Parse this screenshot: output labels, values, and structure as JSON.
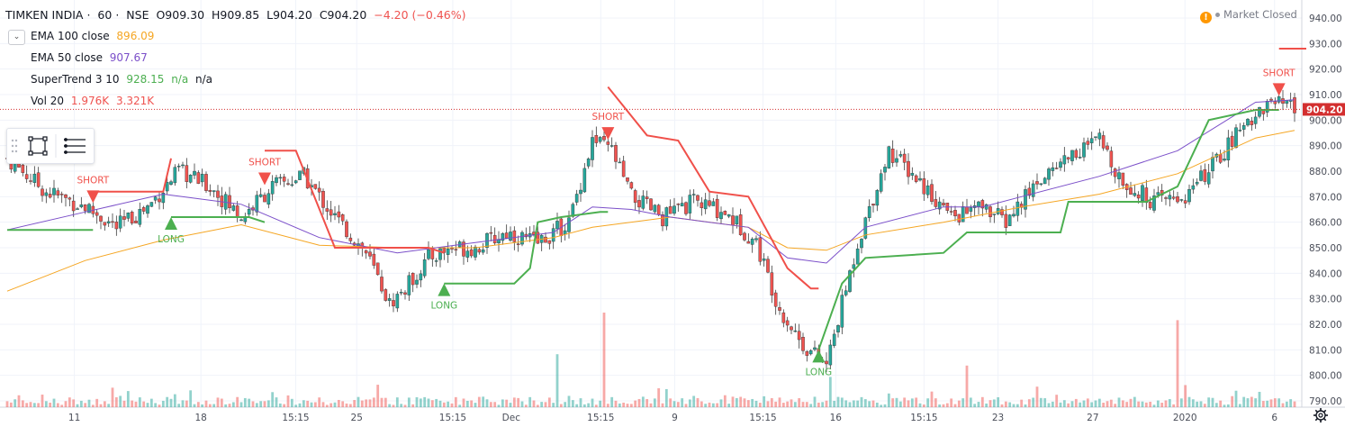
{
  "header": {
    "symbol": "TIMKEN INDIA",
    "interval": "60",
    "exchange": "NSE",
    "open": "O909.30",
    "high": "H909.85",
    "low": "L904.20",
    "close": "C904.20",
    "change": "−4.20 (−0.46%)"
  },
  "status": {
    "text": "Market Closed",
    "warning_icon": "warning-icon"
  },
  "indicators": [
    {
      "label": "EMA 100 close",
      "values": [
        "896.09"
      ],
      "color": "#f5a623"
    },
    {
      "label": "EMA 50 close",
      "values": [
        "907.67"
      ],
      "color": "#7b4fc9"
    },
    {
      "label": "SuperTrend 3 10",
      "values": [
        "928.15",
        "n/a",
        "n/a"
      ],
      "color": "#4caf50"
    },
    {
      "label": "Vol 20",
      "values": [
        "1.976K",
        "3.321K"
      ],
      "color": "#ef5350"
    }
  ],
  "toolbar": {
    "icons": [
      "drag-handle-icon",
      "rectangle-icon",
      "menu-icon"
    ]
  },
  "colors": {
    "up": "#26a69a",
    "down": "#ef5350",
    "ema100": "#f5a623",
    "ema50": "#7b4fc9",
    "supertrend_up": "#4caf50",
    "supertrend_down": "#f0504a",
    "price_line": "#d32f2f"
  },
  "chart_data": {
    "type": "candlestick",
    "ylim": [
      790,
      940
    ],
    "y_ticks": [
      "940.00",
      "930.00",
      "920.00",
      "910.00",
      "900.00",
      "890.00",
      "880.00",
      "870.00",
      "860.00",
      "850.00",
      "840.00",
      "830.00",
      "820.00",
      "810.00",
      "800.00",
      "790.00"
    ],
    "x_ticks": [
      "11",
      "18",
      "15:15",
      "25",
      "15:15",
      "Dec",
      "15:15",
      "9",
      "15:15",
      "16",
      "15:15",
      "23",
      "27",
      "2020",
      "6"
    ],
    "last_price": "904.20",
    "signals": [
      {
        "label": "SHORT",
        "type": "short"
      },
      {
        "label": "LONG",
        "type": "long"
      },
      {
        "label": "SHORT",
        "type": "short"
      },
      {
        "label": "LONG",
        "type": "long"
      },
      {
        "label": "SHORT",
        "type": "short"
      },
      {
        "label": "LONG",
        "type": "long"
      },
      {
        "label": "SHORT",
        "type": "short"
      }
    ],
    "close_path": [
      [
        0,
        885
      ],
      [
        10,
        872
      ],
      [
        20,
        866
      ],
      [
        28,
        858
      ],
      [
        36,
        866
      ],
      [
        44,
        880
      ],
      [
        52,
        874
      ],
      [
        60,
        862
      ],
      [
        68,
        874
      ],
      [
        76,
        878
      ],
      [
        84,
        862
      ],
      [
        92,
        848
      ],
      [
        98,
        828
      ],
      [
        102,
        834
      ],
      [
        108,
        846
      ],
      [
        114,
        850
      ],
      [
        120,
        850
      ],
      [
        128,
        856
      ],
      [
        136,
        852
      ],
      [
        144,
        860
      ],
      [
        150,
        892
      ],
      [
        155,
        888
      ],
      [
        160,
        870
      ],
      [
        168,
        862
      ],
      [
        176,
        868
      ],
      [
        184,
        864
      ],
      [
        192,
        852
      ],
      [
        198,
        826
      ],
      [
        204,
        812
      ],
      [
        210,
        804
      ],
      [
        218,
        852
      ],
      [
        226,
        888
      ],
      [
        234,
        876
      ],
      [
        242,
        862
      ],
      [
        250,
        866
      ],
      [
        256,
        860
      ],
      [
        264,
        876
      ],
      [
        272,
        886
      ],
      [
        280,
        892
      ],
      [
        286,
        876
      ],
      [
        294,
        868
      ],
      [
        302,
        870
      ],
      [
        310,
        884
      ],
      [
        318,
        900
      ],
      [
        324,
        907
      ],
      [
        330,
        904
      ]
    ],
    "ema50_path": [
      [
        0,
        857
      ],
      [
        20,
        864
      ],
      [
        40,
        871
      ],
      [
        60,
        867
      ],
      [
        80,
        854
      ],
      [
        100,
        848
      ],
      [
        120,
        852
      ],
      [
        140,
        856
      ],
      [
        150,
        866
      ],
      [
        160,
        865
      ],
      [
        170,
        862
      ],
      [
        180,
        860
      ],
      [
        190,
        858
      ],
      [
        200,
        846
      ],
      [
        210,
        844
      ],
      [
        220,
        858
      ],
      [
        240,
        866
      ],
      [
        250,
        866
      ],
      [
        260,
        870
      ],
      [
        280,
        878
      ],
      [
        300,
        888
      ],
      [
        320,
        907
      ],
      [
        330,
        908
      ]
    ],
    "ema100_path": [
      [
        0,
        833
      ],
      [
        20,
        845
      ],
      [
        40,
        853
      ],
      [
        60,
        859
      ],
      [
        80,
        851
      ],
      [
        100,
        850
      ],
      [
        120,
        850
      ],
      [
        140,
        854
      ],
      [
        150,
        858
      ],
      [
        170,
        862
      ],
      [
        190,
        858
      ],
      [
        200,
        850
      ],
      [
        210,
        849
      ],
      [
        220,
        855
      ],
      [
        240,
        860
      ],
      [
        260,
        866
      ],
      [
        280,
        871
      ],
      [
        300,
        879
      ],
      [
        320,
        893
      ],
      [
        330,
        896
      ]
    ],
    "supertrend": [
      {
        "dir": "up",
        "points": [
          [
            0,
            857
          ],
          [
            22,
            857
          ]
        ]
      },
      {
        "dir": "down",
        "points": [
          [
            22,
            872
          ],
          [
            40,
            872
          ],
          [
            42,
            885
          ]
        ]
      },
      {
        "dir": "up",
        "points": [
          [
            42,
            862
          ],
          [
            62,
            862
          ],
          [
            66,
            860
          ]
        ]
      },
      {
        "dir": "down",
        "points": [
          [
            66,
            888
          ],
          [
            74,
            888
          ],
          [
            84,
            850
          ],
          [
            108,
            850
          ],
          [
            112,
            848
          ]
        ]
      },
      {
        "dir": "up",
        "points": [
          [
            112,
            836
          ],
          [
            130,
            836
          ],
          [
            134,
            842
          ],
          [
            136,
            860
          ],
          [
            142,
            862
          ],
          [
            152,
            864
          ],
          [
            154,
            864
          ]
        ]
      },
      {
        "dir": "down",
        "points": [
          [
            154,
            913
          ],
          [
            164,
            894
          ],
          [
            172,
            892
          ],
          [
            180,
            872
          ],
          [
            190,
            870
          ],
          [
            200,
            842
          ],
          [
            206,
            834
          ],
          [
            208,
            834
          ]
        ]
      },
      {
        "dir": "up",
        "points": [
          [
            208,
            810
          ],
          [
            214,
            836
          ],
          [
            220,
            846
          ],
          [
            240,
            848
          ],
          [
            246,
            856
          ],
          [
            270,
            856
          ],
          [
            272,
            868
          ],
          [
            292,
            868
          ],
          [
            300,
            874
          ],
          [
            308,
            900
          ],
          [
            320,
            904
          ],
          [
            326,
            904
          ]
        ]
      },
      {
        "dir": "down",
        "points": [
          [
            326,
            928
          ],
          [
            333,
            928
          ]
        ]
      }
    ],
    "volume_spikes": [
      {
        "x": 141,
        "v": 14
      },
      {
        "x": 153,
        "v": 25
      },
      {
        "x": 211,
        "v": 8
      },
      {
        "x": 246,
        "v": 11
      },
      {
        "x": 300,
        "v": 23
      }
    ]
  }
}
